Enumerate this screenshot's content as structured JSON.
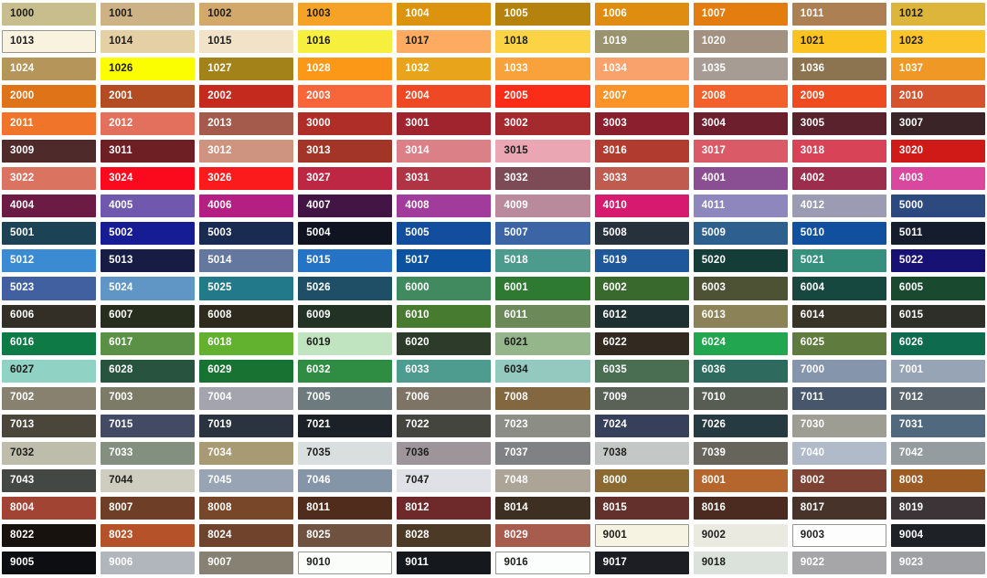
{
  "page": {
    "background": "#FFFFFF"
  },
  "grid": {
    "columns": 10,
    "rows": 21,
    "text_dark": "#1D1D1B",
    "text_light": "#FFFFFF",
    "light_swatch_border": "#97978F"
  },
  "swatches": [
    {
      "code": "1000",
      "bg": "#C8BD8D",
      "fg": "dark"
    },
    {
      "code": "1001",
      "bg": "#CDB286",
      "fg": "dark"
    },
    {
      "code": "1002",
      "bg": "#D2A86B",
      "fg": "dark"
    },
    {
      "code": "1003",
      "bg": "#F6A226",
      "fg": "dark"
    },
    {
      "code": "1004",
      "bg": "#DC930E",
      "fg": "light"
    },
    {
      "code": "1005",
      "bg": "#B5830D",
      "fg": "light"
    },
    {
      "code": "1006",
      "bg": "#DE8D10",
      "fg": "light"
    },
    {
      "code": "1007",
      "bg": "#E47D10",
      "fg": "light"
    },
    {
      "code": "1011",
      "bg": "#AC8052",
      "fg": "light"
    },
    {
      "code": "1012",
      "bg": "#DCB53A",
      "fg": "dark"
    },
    {
      "code": "1013",
      "bg": "#F9F2DE",
      "fg": "dark",
      "border": true
    },
    {
      "code": "1014",
      "bg": "#E5CFA5",
      "fg": "dark"
    },
    {
      "code": "1015",
      "bg": "#F1E2C8",
      "fg": "dark"
    },
    {
      "code": "1016",
      "bg": "#F7EF3E",
      "fg": "dark"
    },
    {
      "code": "1017",
      "bg": "#FCAB61",
      "fg": "dark"
    },
    {
      "code": "1018",
      "bg": "#FCD345",
      "fg": "dark"
    },
    {
      "code": "1019",
      "bg": "#99936F",
      "fg": "light"
    },
    {
      "code": "1020",
      "bg": "#A29180",
      "fg": "light"
    },
    {
      "code": "1021",
      "bg": "#FBC320",
      "fg": "dark"
    },
    {
      "code": "1023",
      "bg": "#FBC42A",
      "fg": "dark"
    },
    {
      "code": "1024",
      "bg": "#B6955A",
      "fg": "light"
    },
    {
      "code": "1026",
      "bg": "#FBFE00",
      "fg": "dark"
    },
    {
      "code": "1027",
      "bg": "#A3821A",
      "fg": "light"
    },
    {
      "code": "1028",
      "bg": "#FB9818",
      "fg": "light"
    },
    {
      "code": "1032",
      "bg": "#E8A51B",
      "fg": "light"
    },
    {
      "code": "1033",
      "bg": "#F9A13A",
      "fg": "light"
    },
    {
      "code": "1034",
      "bg": "#F9A26B",
      "fg": "light"
    },
    {
      "code": "1035",
      "bg": "#A79C94",
      "fg": "light"
    },
    {
      "code": "1036",
      "bg": "#8D7451",
      "fg": "light"
    },
    {
      "code": "1037",
      "bg": "#EF9826",
      "fg": "light"
    },
    {
      "code": "2000",
      "bg": "#DF7318",
      "fg": "light"
    },
    {
      "code": "2001",
      "bg": "#B34C23",
      "fg": "light"
    },
    {
      "code": "2002",
      "bg": "#C42A1E",
      "fg": "light"
    },
    {
      "code": "2003",
      "bg": "#F7663B",
      "fg": "light"
    },
    {
      "code": "2004",
      "bg": "#EE4824",
      "fg": "light"
    },
    {
      "code": "2005",
      "bg": "#FB2D18",
      "fg": "light"
    },
    {
      "code": "2007",
      "bg": "#FB9428",
      "fg": "light"
    },
    {
      "code": "2008",
      "bg": "#F2602B",
      "fg": "light"
    },
    {
      "code": "2009",
      "bg": "#EE4C20",
      "fg": "light"
    },
    {
      "code": "2010",
      "bg": "#D4532C",
      "fg": "light"
    },
    {
      "code": "2011",
      "bg": "#F0752A",
      "fg": "light"
    },
    {
      "code": "2012",
      "bg": "#E2705C",
      "fg": "light"
    },
    {
      "code": "2013",
      "bg": "#A55B4C",
      "fg": "light"
    },
    {
      "code": "3000",
      "bg": "#AF2E28",
      "fg": "light"
    },
    {
      "code": "3001",
      "bg": "#9F242E",
      "fg": "light"
    },
    {
      "code": "3002",
      "bg": "#A52A2D",
      "fg": "light"
    },
    {
      "code": "3003",
      "bg": "#8C1F2D",
      "fg": "light"
    },
    {
      "code": "3004",
      "bg": "#6E1F2E",
      "fg": "light"
    },
    {
      "code": "3005",
      "bg": "#5A222C",
      "fg": "light"
    },
    {
      "code": "3007",
      "bg": "#3B2428",
      "fg": "light"
    },
    {
      "code": "3009",
      "bg": "#4F2A2B",
      "fg": "light"
    },
    {
      "code": "3011",
      "bg": "#6E1F24",
      "fg": "light"
    },
    {
      "code": "3012",
      "bg": "#CE9480",
      "fg": "light"
    },
    {
      "code": "3013",
      "bg": "#A23527",
      "fg": "light"
    },
    {
      "code": "3014",
      "bg": "#DC8087",
      "fg": "light"
    },
    {
      "code": "3015",
      "bg": "#EBA6B4",
      "fg": "dark"
    },
    {
      "code": "3016",
      "bg": "#B23B30",
      "fg": "light"
    },
    {
      "code": "3017",
      "bg": "#DA5A68",
      "fg": "light"
    },
    {
      "code": "3018",
      "bg": "#D84357",
      "fg": "light"
    },
    {
      "code": "3020",
      "bg": "#D01A18",
      "fg": "light"
    },
    {
      "code": "3022",
      "bg": "#DA7460",
      "fg": "light"
    },
    {
      "code": "3024",
      "bg": "#FB0A1E",
      "fg": "light"
    },
    {
      "code": "3026",
      "bg": "#FB1A1C",
      "fg": "light"
    },
    {
      "code": "3027",
      "bg": "#BD2744",
      "fg": "light"
    },
    {
      "code": "3031",
      "bg": "#B03443",
      "fg": "light"
    },
    {
      "code": "3032",
      "bg": "#7D4B56",
      "fg": "light"
    },
    {
      "code": "3033",
      "bg": "#C05B50",
      "fg": "light"
    },
    {
      "code": "4001",
      "bg": "#8A4E92",
      "fg": "light"
    },
    {
      "code": "4002",
      "bg": "#9C2D4C",
      "fg": "light"
    },
    {
      "code": "4003",
      "bg": "#D9479E",
      "fg": "light"
    },
    {
      "code": "4004",
      "bg": "#6C1C44",
      "fg": "light"
    },
    {
      "code": "4005",
      "bg": "#6F58AE",
      "fg": "light"
    },
    {
      "code": "4006",
      "bg": "#B51E83",
      "fg": "light"
    },
    {
      "code": "4007",
      "bg": "#421544",
      "fg": "light"
    },
    {
      "code": "4008",
      "bg": "#A13C9D",
      "fg": "light"
    },
    {
      "code": "4009",
      "bg": "#B98A9B",
      "fg": "light"
    },
    {
      "code": "4010",
      "bg": "#D51A6F",
      "fg": "light"
    },
    {
      "code": "4011",
      "bg": "#8D87BE",
      "fg": "light"
    },
    {
      "code": "4012",
      "bg": "#9B9CB3",
      "fg": "light"
    },
    {
      "code": "5000",
      "bg": "#2C4A80",
      "fg": "light"
    },
    {
      "code": "5001",
      "bg": "#1C4256",
      "fg": "light"
    },
    {
      "code": "5002",
      "bg": "#161C93",
      "fg": "light"
    },
    {
      "code": "5003",
      "bg": "#1A2B52",
      "fg": "light"
    },
    {
      "code": "5004",
      "bg": "#0F1420",
      "fg": "light"
    },
    {
      "code": "5005",
      "bg": "#124E9D",
      "fg": "light"
    },
    {
      "code": "5007",
      "bg": "#3B65A4",
      "fg": "light"
    },
    {
      "code": "5008",
      "bg": "#27313C",
      "fg": "light"
    },
    {
      "code": "5009",
      "bg": "#2E608F",
      "fg": "light"
    },
    {
      "code": "5010",
      "bg": "#10509E",
      "fg": "light"
    },
    {
      "code": "5011",
      "bg": "#151C2E",
      "fg": "light"
    },
    {
      "code": "5012",
      "bg": "#3A8BD2",
      "fg": "light"
    },
    {
      "code": "5013",
      "bg": "#171C45",
      "fg": "light"
    },
    {
      "code": "5014",
      "bg": "#64789F",
      "fg": "light"
    },
    {
      "code": "5015",
      "bg": "#2473C4",
      "fg": "light"
    },
    {
      "code": "5017",
      "bg": "#0C52A1",
      "fg": "light"
    },
    {
      "code": "5018",
      "bg": "#4C9B8C",
      "fg": "light"
    },
    {
      "code": "5019",
      "bg": "#1E589B",
      "fg": "light"
    },
    {
      "code": "5020",
      "bg": "#143D37",
      "fg": "light"
    },
    {
      "code": "5021",
      "bg": "#35917E",
      "fg": "light"
    },
    {
      "code": "5022",
      "bg": "#161173",
      "fg": "light"
    },
    {
      "code": "5023",
      "bg": "#41609F",
      "fg": "light"
    },
    {
      "code": "5024",
      "bg": "#6096C5",
      "fg": "light"
    },
    {
      "code": "5025",
      "bg": "#21798A",
      "fg": "light"
    },
    {
      "code": "5026",
      "bg": "#1F4F66",
      "fg": "light"
    },
    {
      "code": "6000",
      "bg": "#418A60",
      "fg": "light"
    },
    {
      "code": "6001",
      "bg": "#2E7A33",
      "fg": "light"
    },
    {
      "code": "6002",
      "bg": "#39692C",
      "fg": "light"
    },
    {
      "code": "6003",
      "bg": "#4C5233",
      "fg": "light"
    },
    {
      "code": "6004",
      "bg": "#174840",
      "fg": "light"
    },
    {
      "code": "6005",
      "bg": "#194A30",
      "fg": "light"
    },
    {
      "code": "6006",
      "bg": "#332F26",
      "fg": "light"
    },
    {
      "code": "6007",
      "bg": "#272E1D",
      "fg": "light"
    },
    {
      "code": "6008",
      "bg": "#2E2A1D",
      "fg": "light"
    },
    {
      "code": "6009",
      "bg": "#223325",
      "fg": "light"
    },
    {
      "code": "6010",
      "bg": "#477B2F",
      "fg": "light"
    },
    {
      "code": "6011",
      "bg": "#6C8A59",
      "fg": "light"
    },
    {
      "code": "6012",
      "bg": "#1F3033",
      "fg": "light"
    },
    {
      "code": "6013",
      "bg": "#8B8258",
      "fg": "light"
    },
    {
      "code": "6014",
      "bg": "#393428",
      "fg": "light"
    },
    {
      "code": "6015",
      "bg": "#2E2F28",
      "fg": "light"
    },
    {
      "code": "6016",
      "bg": "#0E7B46",
      "fg": "light"
    },
    {
      "code": "6017",
      "bg": "#5B9047",
      "fg": "light"
    },
    {
      "code": "6018",
      "bg": "#62B22F",
      "fg": "light"
    },
    {
      "code": "6019",
      "bg": "#C0E3C0",
      "fg": "dark"
    },
    {
      "code": "6020",
      "bg": "#2C3B2A",
      "fg": "light"
    },
    {
      "code": "6021",
      "bg": "#94B68A",
      "fg": "dark"
    },
    {
      "code": "6022",
      "bg": "#322A20",
      "fg": "light"
    },
    {
      "code": "6024",
      "bg": "#22A64F",
      "fg": "light"
    },
    {
      "code": "6025",
      "bg": "#5F7B3E",
      "fg": "light"
    },
    {
      "code": "6026",
      "bg": "#0F6B4E",
      "fg": "light"
    },
    {
      "code": "6027",
      "bg": "#90D2C3",
      "fg": "dark"
    },
    {
      "code": "6028",
      "bg": "#28533F",
      "fg": "light"
    },
    {
      "code": "6029",
      "bg": "#187232",
      "fg": "light"
    },
    {
      "code": "6032",
      "bg": "#2F8C43",
      "fg": "light"
    },
    {
      "code": "6033",
      "bg": "#4E9C90",
      "fg": "light"
    },
    {
      "code": "6034",
      "bg": "#93C9BE",
      "fg": "dark"
    },
    {
      "code": "6035",
      "bg": "#4A6E51",
      "fg": "light"
    },
    {
      "code": "6036",
      "bg": "#2E6B5E",
      "fg": "light"
    },
    {
      "code": "7000",
      "bg": "#8596AC",
      "fg": "light"
    },
    {
      "code": "7001",
      "bg": "#97A4B5",
      "fg": "light"
    },
    {
      "code": "7002",
      "bg": "#888170",
      "fg": "light"
    },
    {
      "code": "7003",
      "bg": "#7B7B68",
      "fg": "light"
    },
    {
      "code": "7004",
      "bg": "#A3A4AE",
      "fg": "light"
    },
    {
      "code": "7005",
      "bg": "#6E7B7E",
      "fg": "light"
    },
    {
      "code": "7006",
      "bg": "#7E7466",
      "fg": "light"
    },
    {
      "code": "7008",
      "bg": "#826740",
      "fg": "light"
    },
    {
      "code": "7009",
      "bg": "#5A6157",
      "fg": "light"
    },
    {
      "code": "7010",
      "bg": "#575D53",
      "fg": "light"
    },
    {
      "code": "7011",
      "bg": "#47566B",
      "fg": "light"
    },
    {
      "code": "7012",
      "bg": "#59636B",
      "fg": "light"
    },
    {
      "code": "7013",
      "bg": "#4B463A",
      "fg": "light"
    },
    {
      "code": "7015",
      "bg": "#434B64",
      "fg": "light"
    },
    {
      "code": "7019",
      "bg": "#2B3340",
      "fg": "light"
    },
    {
      "code": "7021",
      "bg": "#1C2128",
      "fg": "light"
    },
    {
      "code": "7022",
      "bg": "#45453F",
      "fg": "light"
    },
    {
      "code": "7023",
      "bg": "#8C8E85",
      "fg": "light"
    },
    {
      "code": "7024",
      "bg": "#36405B",
      "fg": "light"
    },
    {
      "code": "7026",
      "bg": "#263A41",
      "fg": "light"
    },
    {
      "code": "7030",
      "bg": "#9E9D93",
      "fg": "light"
    },
    {
      "code": "7031",
      "bg": "#51697E",
      "fg": "light"
    },
    {
      "code": "7032",
      "bg": "#BEBCAB",
      "fg": "dark"
    },
    {
      "code": "7033",
      "bg": "#84907F",
      "fg": "light"
    },
    {
      "code": "7034",
      "bg": "#A89B74",
      "fg": "light"
    },
    {
      "code": "7035",
      "bg": "#D9DEDE",
      "fg": "dark"
    },
    {
      "code": "7036",
      "bg": "#9E959B",
      "fg": "dark"
    },
    {
      "code": "7037",
      "bg": "#7F8184",
      "fg": "light"
    },
    {
      "code": "7038",
      "bg": "#C3C7C5",
      "fg": "dark"
    },
    {
      "code": "7039",
      "bg": "#67645C",
      "fg": "light"
    },
    {
      "code": "7040",
      "bg": "#B0BAC9",
      "fg": "light"
    },
    {
      "code": "7042",
      "bg": "#949C9F",
      "fg": "light"
    },
    {
      "code": "7043",
      "bg": "#434845",
      "fg": "light"
    },
    {
      "code": "7044",
      "bg": "#CECDC0",
      "fg": "dark"
    },
    {
      "code": "7045",
      "bg": "#98A3B4",
      "fg": "light"
    },
    {
      "code": "7046",
      "bg": "#8495A8",
      "fg": "light"
    },
    {
      "code": "7047",
      "bg": "#DFE1E6",
      "fg": "dark"
    },
    {
      "code": "7048",
      "bg": "#ACA497",
      "fg": "light"
    },
    {
      "code": "8000",
      "bg": "#8B6A31",
      "fg": "light"
    },
    {
      "code": "8001",
      "bg": "#B5662C",
      "fg": "light"
    },
    {
      "code": "8002",
      "bg": "#7E4235",
      "fg": "light"
    },
    {
      "code": "8003",
      "bg": "#9B5B22",
      "fg": "light"
    },
    {
      "code": "8004",
      "bg": "#A14434",
      "fg": "light"
    },
    {
      "code": "8007",
      "bg": "#6E3E26",
      "fg": "light"
    },
    {
      "code": "8008",
      "bg": "#784629",
      "fg": "light"
    },
    {
      "code": "8011",
      "bg": "#4F2C1C",
      "fg": "light"
    },
    {
      "code": "8012",
      "bg": "#6E2A2A",
      "fg": "light"
    },
    {
      "code": "8014",
      "bg": "#3D2F21",
      "fg": "light"
    },
    {
      "code": "8015",
      "bg": "#63302B",
      "fg": "light"
    },
    {
      "code": "8016",
      "bg": "#4B2B20",
      "fg": "light"
    },
    {
      "code": "8017",
      "bg": "#473329",
      "fg": "light"
    },
    {
      "code": "8019",
      "bg": "#3C3436",
      "fg": "light"
    },
    {
      "code": "8022",
      "bg": "#18120F",
      "fg": "light"
    },
    {
      "code": "8023",
      "bg": "#B55229",
      "fg": "light"
    },
    {
      "code": "8024",
      "bg": "#70432C",
      "fg": "light"
    },
    {
      "code": "8025",
      "bg": "#6F523F",
      "fg": "light"
    },
    {
      "code": "8028",
      "bg": "#4C3A26",
      "fg": "light"
    },
    {
      "code": "8029",
      "bg": "#A75C4D",
      "fg": "light"
    },
    {
      "code": "9001",
      "bg": "#F7F3E3",
      "fg": "dark",
      "border": true
    },
    {
      "code": "9002",
      "bg": "#EBEAE0",
      "fg": "dark"
    },
    {
      "code": "9003",
      "bg": "#FDFDFE",
      "fg": "dark",
      "border": true
    },
    {
      "code": "9004",
      "bg": "#1E2126",
      "fg": "light"
    },
    {
      "code": "9005",
      "bg": "#0C0E12",
      "fg": "light"
    },
    {
      "code": "9006",
      "bg": "#B1B6BC",
      "fg": "light"
    },
    {
      "code": "9007",
      "bg": "#878174",
      "fg": "light"
    },
    {
      "code": "9010",
      "bg": "#FBFDFA",
      "fg": "dark",
      "border": true
    },
    {
      "code": "9011",
      "bg": "#15181D",
      "fg": "light"
    },
    {
      "code": "9016",
      "bg": "#FCFDFD",
      "fg": "dark",
      "border": true
    },
    {
      "code": "9017",
      "bg": "#1C1E23",
      "fg": "light"
    },
    {
      "code": "9018",
      "bg": "#DAE2DB",
      "fg": "dark"
    },
    {
      "code": "9022",
      "bg": "#A6A6A8",
      "fg": "light"
    },
    {
      "code": "9023",
      "bg": "#9EA0A4",
      "fg": "light"
    }
  ]
}
